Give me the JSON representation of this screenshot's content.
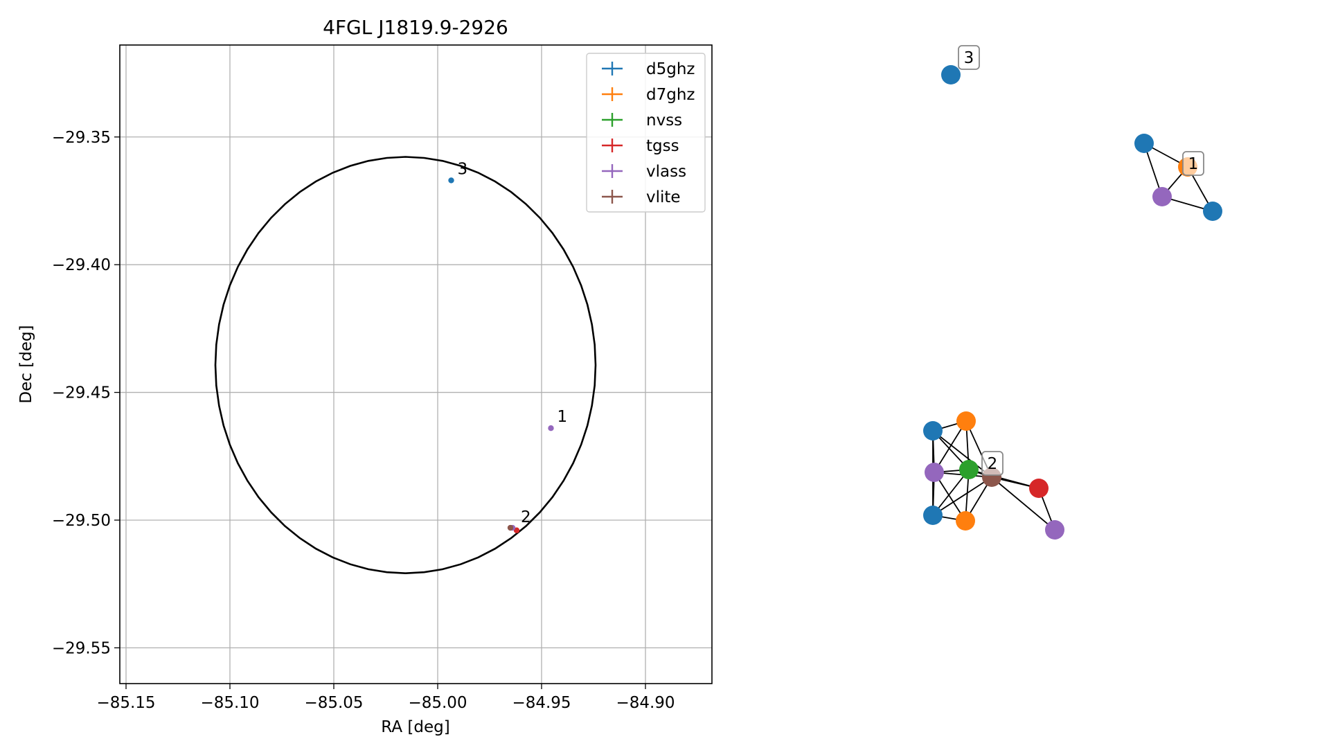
{
  "chart_data": [
    {
      "type": "scatter",
      "title": "4FGL J1819.9-2926",
      "xlabel": "RA [deg]",
      "ylabel": "Dec [deg]",
      "xlim": [
        -85.153,
        -84.868
      ],
      "ylim": [
        -29.564,
        -29.314
      ],
      "xticks": [
        -85.15,
        -85.1,
        -85.05,
        -85.0,
        -84.95,
        -84.9
      ],
      "xtick_labels": [
        "−85.15",
        "−85.10",
        "−85.05",
        "−85.00",
        "−84.95",
        "−84.90"
      ],
      "yticks": [
        -29.35,
        -29.4,
        -29.45,
        -29.5,
        -29.55
      ],
      "ytick_labels": [
        "−29.35",
        "−29.40",
        "−29.45",
        "−29.50",
        "−29.55"
      ],
      "grid": true,
      "legend_position": "upper-right",
      "ellipse": {
        "center_ra": -85.0155,
        "center_dec": -29.4393,
        "semi_ra": 0.0915,
        "semi_dec": 0.0815
      },
      "series": [
        {
          "name": "d5ghz",
          "color": "#1f77b4",
          "points": [
            {
              "ra": -84.9935,
              "dec": -29.367
            }
          ]
        },
        {
          "name": "d7ghz",
          "color": "#ff7f0e",
          "points": []
        },
        {
          "name": "nvss",
          "color": "#2ca02c",
          "points": []
        },
        {
          "name": "tgss",
          "color": "#d62728",
          "points": [
            {
              "ra": -84.962,
              "dec": -29.504
            }
          ]
        },
        {
          "name": "vlass",
          "color": "#9467bd",
          "points": [
            {
              "ra": -84.9455,
              "dec": -29.464
            },
            {
              "ra": -84.964,
              "dec": -29.503
            }
          ]
        },
        {
          "name": "vlite",
          "color": "#8c564b",
          "points": [
            {
              "ra": -84.965,
              "dec": -29.503
            }
          ]
        }
      ],
      "annotations": [
        {
          "text": "1",
          "ra": -84.9455,
          "dec": -29.464
        },
        {
          "text": "2",
          "ra": -84.963,
          "dec": -29.5033
        },
        {
          "text": "3",
          "ra": -84.9935,
          "dec": -29.367
        }
      ]
    },
    {
      "type": "network",
      "groups": [
        {
          "label": "1",
          "nodes": [
            {
              "id": "a",
              "color": "#1f77b4"
            },
            {
              "id": "b",
              "color": "#ff7f0e"
            },
            {
              "id": "c",
              "color": "#9467bd"
            },
            {
              "id": "d",
              "color": "#1f77b4"
            }
          ],
          "edges": [
            [
              "a",
              "b"
            ],
            [
              "a",
              "c"
            ],
            [
              "b",
              "c"
            ],
            [
              "b",
              "d"
            ],
            [
              "c",
              "d"
            ]
          ]
        },
        {
          "label": "2",
          "nodes": [
            {
              "id": "p1",
              "color": "#1f77b4"
            },
            {
              "id": "p2",
              "color": "#ff7f0e"
            },
            {
              "id": "p3",
              "color": "#9467bd"
            },
            {
              "id": "p4",
              "color": "#2ca02c"
            },
            {
              "id": "p5",
              "color": "#8c564b"
            },
            {
              "id": "p6",
              "color": "#d62728"
            },
            {
              "id": "p7",
              "color": "#1f77b4"
            },
            {
              "id": "p8",
              "color": "#ff7f0e"
            },
            {
              "id": "p9",
              "color": "#9467bd"
            }
          ],
          "edges": [
            [
              "p1",
              "p2"
            ],
            [
              "p1",
              "p3"
            ],
            [
              "p1",
              "p4"
            ],
            [
              "p1",
              "p5"
            ],
            [
              "p1",
              "p7"
            ],
            [
              "p2",
              "p3"
            ],
            [
              "p2",
              "p4"
            ],
            [
              "p2",
              "p5"
            ],
            [
              "p3",
              "p4"
            ],
            [
              "p3",
              "p5"
            ],
            [
              "p3",
              "p7"
            ],
            [
              "p3",
              "p8"
            ],
            [
              "p4",
              "p5"
            ],
            [
              "p4",
              "p6"
            ],
            [
              "p4",
              "p7"
            ],
            [
              "p4",
              "p8"
            ],
            [
              "p5",
              "p6"
            ],
            [
              "p5",
              "p7"
            ],
            [
              "p5",
              "p8"
            ],
            [
              "p5",
              "p9"
            ],
            [
              "p6",
              "p9"
            ],
            [
              "p7",
              "p8"
            ]
          ]
        },
        {
          "label": "3",
          "nodes": [
            {
              "id": "q1",
              "color": "#1f77b4"
            }
          ],
          "edges": []
        }
      ]
    }
  ]
}
